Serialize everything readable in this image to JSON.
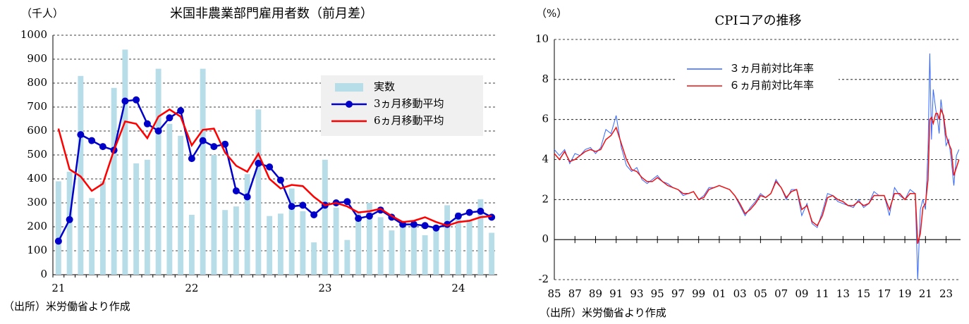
{
  "chart_data": [
    {
      "type": "combo",
      "title": "米国非農業部門雇用者数（前月差）",
      "ylabel": "（千人）",
      "source": "（出所）米労働省より作成",
      "categories": [
        "21",
        null,
        null,
        null,
        null,
        null,
        null,
        null,
        null,
        null,
        null,
        null,
        "22",
        null,
        null,
        null,
        null,
        null,
        null,
        null,
        null,
        null,
        null,
        null,
        "23",
        null,
        null,
        null,
        null,
        null,
        null,
        null,
        null,
        null,
        null,
        null,
        "24",
        null,
        null,
        null
      ],
      "series": [
        {
          "name": "実数",
          "type": "bar",
          "color": "#b7dde8",
          "values": [
            390,
            430,
            830,
            320,
            390,
            780,
            940,
            465,
            480,
            860,
            630,
            580,
            250,
            860,
            500,
            270,
            285,
            420,
            690,
            245,
            255,
            360,
            265,
            135,
            480,
            280,
            145,
            260,
            300,
            240,
            185,
            210,
            220,
            165,
            200,
            290,
            260,
            230,
            315,
            175
          ]
        },
        {
          "name": "3ヵ月移動平均",
          "type": "line",
          "marker": true,
          "color": "#0000c8",
          "values": [
            140,
            230,
            585,
            560,
            535,
            520,
            725,
            730,
            630,
            600,
            655,
            685,
            485,
            560,
            535,
            545,
            350,
            325,
            465,
            450,
            395,
            285,
            290,
            250,
            290,
            300,
            305,
            235,
            245,
            270,
            240,
            210,
            210,
            205,
            195,
            210,
            245,
            260,
            265,
            240
          ]
        },
        {
          "name": "6ヵ月移動平均",
          "type": "line",
          "marker": false,
          "color": "#ff0000",
          "values": [
            610,
            440,
            410,
            350,
            380,
            520,
            640,
            630,
            570,
            660,
            690,
            660,
            540,
            605,
            610,
            510,
            455,
            430,
            505,
            400,
            360,
            375,
            370,
            325,
            290,
            300,
            285,
            260,
            265,
            275,
            245,
            220,
            225,
            240,
            220,
            205,
            220,
            225,
            240,
            245
          ]
        }
      ],
      "ylim": [
        0,
        1000
      ],
      "yticks": [
        0,
        100,
        200,
        300,
        400,
        500,
        600,
        700,
        800,
        900,
        1000
      ],
      "grid": true,
      "legend": "upper right"
    },
    {
      "type": "line",
      "title": "CPIコアの推移",
      "ylabel": "（%）",
      "source": "（出所）米労働省より作成",
      "x": [
        1985,
        1985.5,
        1986,
        1986.5,
        1987,
        1987.5,
        1988,
        1988.5,
        1989,
        1989.5,
        1990,
        1990.5,
        1991,
        1991.5,
        1992,
        1992.5,
        1993,
        1993.5,
        1994,
        1994.5,
        1995,
        1995.5,
        1996,
        1996.5,
        1997,
        1997.5,
        1998,
        1998.5,
        1999,
        1999.5,
        2000,
        2000.5,
        2001,
        2001.5,
        2002,
        2002.5,
        2003,
        2003.5,
        2004,
        2004.5,
        2005,
        2005.5,
        2006,
        2006.5,
        2007,
        2007.5,
        2008,
        2008.5,
        2009,
        2009.5,
        2010,
        2010.5,
        2011,
        2011.5,
        2012,
        2012.5,
        2013,
        2013.5,
        2014,
        2014.5,
        2015,
        2015.5,
        2016,
        2016.5,
        2017,
        2017.5,
        2018,
        2018.5,
        2019,
        2019.5,
        2020,
        2020.25,
        2020.5,
        2020.75,
        2021,
        2021.25,
        2021.42,
        2021.58,
        2021.75,
        2022,
        2022.17,
        2022.33,
        2022.5,
        2022.75,
        2023,
        2023.25,
        2023.5,
        2023.75,
        2024,
        2024.25
      ],
      "series": [
        {
          "name": "３ヵ月前対比年率",
          "color": "#3366ff",
          "values": [
            4.5,
            4.2,
            4.5,
            3.8,
            4.3,
            4.2,
            4.5,
            4.6,
            4.3,
            4.6,
            5.5,
            5.3,
            6.2,
            4.6,
            3.7,
            3.4,
            3.6,
            3.0,
            2.8,
            3.0,
            3.2,
            2.9,
            2.8,
            2.6,
            2.5,
            2.2,
            2.3,
            2.4,
            2.0,
            2.2,
            2.6,
            2.6,
            2.7,
            2.6,
            2.5,
            2.2,
            1.7,
            1.2,
            1.6,
            1.9,
            2.3,
            2.1,
            2.3,
            3.0,
            2.6,
            2.0,
            2.5,
            2.5,
            1.2,
            1.8,
            0.8,
            0.6,
            1.4,
            2.3,
            2.2,
            1.9,
            1.8,
            1.7,
            1.6,
            2.0,
            1.6,
            1.8,
            2.4,
            2.2,
            2.2,
            1.2,
            2.6,
            2.2,
            2.0,
            2.5,
            2.3,
            -2.0,
            1.5,
            2.0,
            1.5,
            4.5,
            9.3,
            5.0,
            7.5,
            6.5,
            6.0,
            5.3,
            7.0,
            6.0,
            4.7,
            5.0,
            4.0,
            2.7,
            4.2,
            4.5
          ]
        },
        {
          "name": "６ヵ月前対比年率",
          "color": "#ee1111",
          "values": [
            4.3,
            4.0,
            4.4,
            3.9,
            4.0,
            4.2,
            4.4,
            4.5,
            4.4,
            4.5,
            5.0,
            5.2,
            5.6,
            4.8,
            4.0,
            3.5,
            3.4,
            3.1,
            2.9,
            2.9,
            3.1,
            2.9,
            2.7,
            2.6,
            2.5,
            2.3,
            2.3,
            2.4,
            2.0,
            2.1,
            2.5,
            2.6,
            2.7,
            2.6,
            2.5,
            2.2,
            1.8,
            1.3,
            1.5,
            1.8,
            2.2,
            2.1,
            2.3,
            2.9,
            2.6,
            2.1,
            2.4,
            2.5,
            1.5,
            1.7,
            0.9,
            0.7,
            1.2,
            2.1,
            2.2,
            2.0,
            1.9,
            1.7,
            1.7,
            1.9,
            1.7,
            1.8,
            2.2,
            2.2,
            2.2,
            1.5,
            2.3,
            2.3,
            2.0,
            2.3,
            2.3,
            -0.2,
            0.3,
            1.6,
            1.8,
            3.0,
            6.0,
            6.1,
            5.8,
            6.3,
            6.3,
            6.0,
            6.5,
            6.2,
            5.2,
            4.8,
            4.5,
            3.2,
            3.6,
            4.0
          ]
        }
      ],
      "xlim": [
        1985,
        2024.4
      ],
      "xticks": [
        {
          "value": 1985,
          "label": "85"
        },
        {
          "value": 1987,
          "label": "87"
        },
        {
          "value": 1989,
          "label": "89"
        },
        {
          "value": 1991,
          "label": "91"
        },
        {
          "value": 1993,
          "label": "93"
        },
        {
          "value": 1995,
          "label": "95"
        },
        {
          "value": 1997,
          "label": "97"
        },
        {
          "value": 1999,
          "label": "99"
        },
        {
          "value": 2001,
          "label": "01"
        },
        {
          "value": 2003,
          "label": "03"
        },
        {
          "value": 2005,
          "label": "05"
        },
        {
          "value": 2007,
          "label": "07"
        },
        {
          "value": 2009,
          "label": "09"
        },
        {
          "value": 2011,
          "label": "11"
        },
        {
          "value": 2013,
          "label": "13"
        },
        {
          "value": 2015,
          "label": "15"
        },
        {
          "value": 2017,
          "label": "17"
        },
        {
          "value": 2019,
          "label": "19"
        },
        {
          "value": 2021,
          "label": "21"
        },
        {
          "value": 2023,
          "label": "23"
        }
      ],
      "ylim": [
        -2,
        10
      ],
      "yticks": [
        10,
        8,
        6,
        4,
        2,
        0,
        -2
      ],
      "grid": true,
      "legend": "upper center"
    }
  ]
}
